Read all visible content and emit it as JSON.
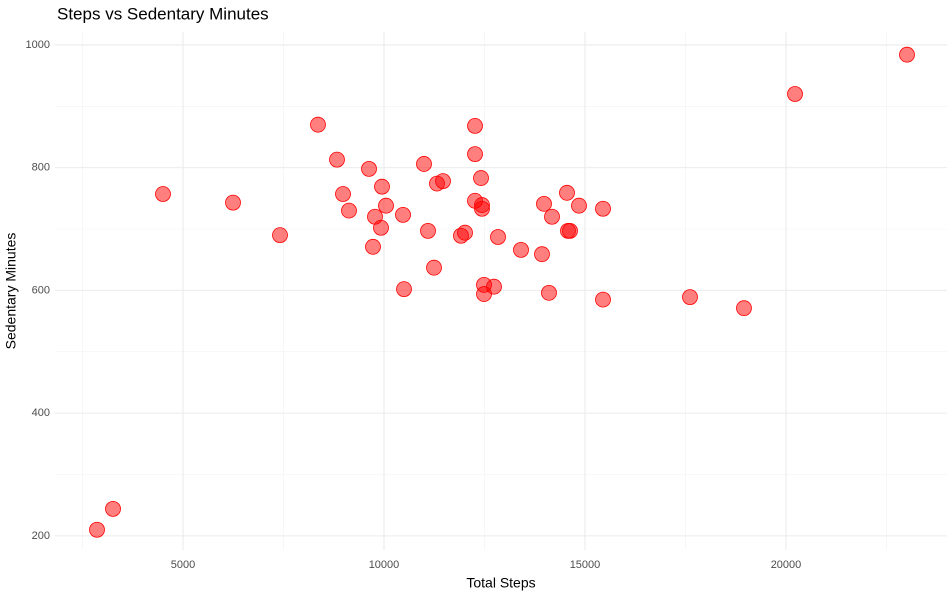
{
  "chart_data": {
    "type": "scatter",
    "title": "Steps vs Sedentary Minutes",
    "x_label": "Total Steps",
    "y_label": "Sedentary Minutes",
    "x": [
      2861,
      3259,
      4502,
      6244,
      7413,
      8358,
      8831,
      8980,
      9129,
      9627,
      9776,
      9726,
      9950,
      10050,
      9925,
      10473,
      10498,
      10995,
      11095,
      11244,
      11318,
      11468,
      11915,
      12015,
      12264,
      12264,
      12264,
      12413,
      12438,
      12438,
      12488,
      12488,
      12736,
      12836,
      13408,
      13930,
      13980,
      14104,
      14179,
      14552,
      14577,
      14627,
      14851,
      15448,
      15448,
      17612,
      18955,
      20224,
      23010
    ],
    "y": [
      210,
      244,
      757,
      743,
      690,
      870,
      813,
      757,
      730,
      798,
      720,
      671,
      769,
      738,
      702,
      723,
      602,
      806,
      697,
      637,
      774,
      778,
      689,
      694,
      868,
      822,
      746,
      783,
      739,
      733,
      609,
      594,
      606,
      687,
      666,
      659,
      741,
      596,
      720,
      759,
      697,
      697,
      738,
      733,
      585,
      589,
      571,
      920,
      984
    ],
    "color": "#ff0000",
    "xlim": [
      1816,
      24005
    ],
    "ylim": [
      177,
      1021
    ],
    "xticks": [
      5000,
      10000,
      15000,
      20000
    ],
    "yticks": [
      200,
      400,
      600,
      800,
      1000
    ],
    "x_minor_grid": [
      2500,
      7500,
      12500,
      17500,
      22500
    ],
    "y_minor_grid": [
      300,
      500,
      700,
      900
    ],
    "grid": true
  }
}
